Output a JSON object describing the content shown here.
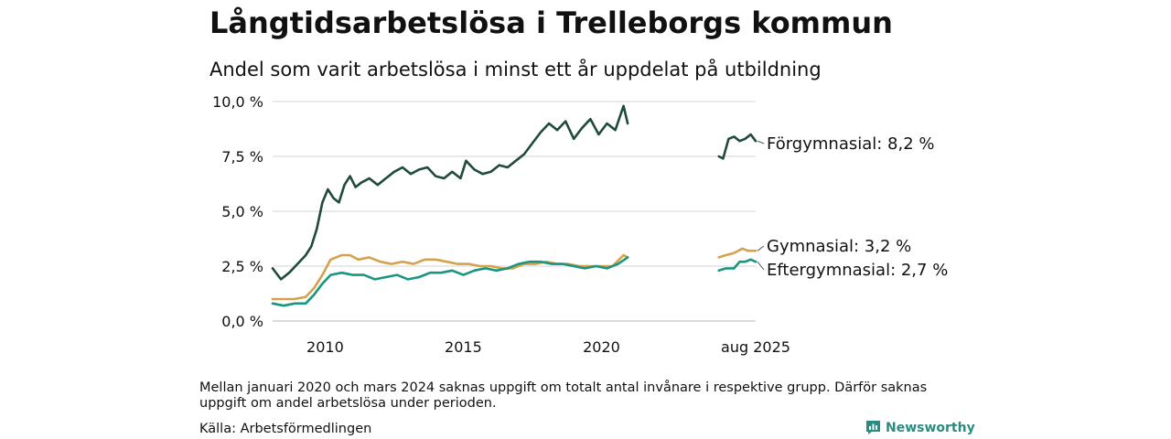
{
  "title": "Långtidsarbetslösa i Trelleborgs kommun",
  "subtitle": "Andel som varit arbetslösa i minst ett år uppdelat på utbildning",
  "note": "Mellan januari 2020 och mars 2024 saknas uppgift om totalt antal invånare i respektive grupp. Därför saknas uppgift om andel arbetslösa under perioden.",
  "source": "Källa: Arbetsförmedlingen",
  "brand": "Newsworthy",
  "chart_data": {
    "type": "line",
    "title": "Långtidsarbetslösa i Trelleborgs kommun",
    "subtitle": "Andel som varit arbetslösa i minst ett år uppdelat på utbildning",
    "ylim": [
      0,
      10
    ],
    "y_ticks": [
      0,
      2.5,
      5,
      7.5,
      10
    ],
    "y_tick_labels": [
      "0,0 %",
      "2,5 %",
      "5,0 %",
      "7,5 %",
      "10,0 %"
    ],
    "x_ticks": [
      2010,
      2015,
      2020,
      "aug 2025"
    ],
    "grid": "horizontal",
    "colors": {
      "Förgymnasial": "#1f4a3c",
      "Gymnasial": "#d4a24c",
      "Eftergymnasial": "#1a9680"
    },
    "series": [
      {
        "name": "Förgymnasial",
        "end_label": "Förgymnasial: 8,2 %",
        "segments": [
          {
            "x": [
              2008.1,
              2008.4,
              2008.7,
              2009.0,
              2009.3,
              2009.5,
              2009.7,
              2009.9,
              2010.1,
              2010.3,
              2010.5,
              2010.7,
              2010.9,
              2011.1,
              2011.3,
              2011.6,
              2011.9,
              2012.2,
              2012.5,
              2012.8,
              2013.1,
              2013.4,
              2013.7,
              2014.0,
              2014.3,
              2014.6,
              2014.9,
              2015.1,
              2015.4,
              2015.7,
              2016.0,
              2016.3,
              2016.6,
              2016.9,
              2017.2,
              2017.5,
              2017.8,
              2018.1,
              2018.4,
              2018.7,
              2019.0,
              2019.3,
              2019.6,
              2019.9,
              2020.2,
              2020.5,
              2020.8,
              2020.95
            ],
            "y": [
              2.4,
              1.9,
              2.2,
              2.6,
              3.0,
              3.4,
              4.2,
              5.4,
              6.0,
              5.6,
              5.4,
              6.2,
              6.6,
              6.1,
              6.3,
              6.5,
              6.2,
              6.5,
              6.8,
              7.0,
              6.7,
              6.9,
              7.0,
              6.6,
              6.5,
              6.8,
              6.5,
              7.3,
              6.9,
              6.7,
              6.8,
              7.1,
              7.0,
              7.3,
              7.6,
              8.1,
              8.6,
              9.0,
              8.7,
              9.1,
              8.3,
              8.8,
              9.2,
              8.5,
              9.0,
              8.7,
              9.8,
              9.0
            ]
          },
          {
            "x": [
              2024.25,
              2024.4,
              2024.6,
              2024.8,
              2025.0,
              2025.2,
              2025.4,
              2025.58
            ],
            "y": [
              7.5,
              7.4,
              8.3,
              8.4,
              8.2,
              8.3,
              8.5,
              8.2
            ]
          }
        ]
      },
      {
        "name": "Gymnasial",
        "end_label": "Gymnasial: 3,2 %",
        "segments": [
          {
            "x": [
              2008.1,
              2008.5,
              2008.9,
              2009.3,
              2009.6,
              2009.9,
              2010.2,
              2010.6,
              2010.9,
              2011.2,
              2011.6,
              2012.0,
              2012.4,
              2012.8,
              2013.2,
              2013.6,
              2014.0,
              2014.4,
              2014.8,
              2015.2,
              2015.6,
              2016.0,
              2016.4,
              2016.8,
              2017.2,
              2017.6,
              2018.0,
              2018.4,
              2018.8,
              2019.2,
              2019.6,
              2020.0,
              2020.4,
              2020.8,
              2020.95
            ],
            "y": [
              1.0,
              1.0,
              1.0,
              1.1,
              1.5,
              2.1,
              2.8,
              3.0,
              3.0,
              2.8,
              2.9,
              2.7,
              2.6,
              2.7,
              2.6,
              2.8,
              2.8,
              2.7,
              2.6,
              2.6,
              2.5,
              2.5,
              2.4,
              2.4,
              2.6,
              2.6,
              2.7,
              2.6,
              2.6,
              2.5,
              2.5,
              2.5,
              2.5,
              3.0,
              2.9
            ]
          },
          {
            "x": [
              2024.25,
              2024.5,
              2024.8,
              2025.1,
              2025.3,
              2025.58
            ],
            "y": [
              2.9,
              3.0,
              3.1,
              3.3,
              3.2,
              3.2
            ]
          }
        ]
      },
      {
        "name": "Eftergymnasial",
        "end_label": "Eftergymnasial: 2,7 %",
        "segments": [
          {
            "x": [
              2008.1,
              2008.5,
              2008.9,
              2009.3,
              2009.6,
              2009.9,
              2010.2,
              2010.6,
              2011.0,
              2011.4,
              2011.8,
              2012.2,
              2012.6,
              2013.0,
              2013.4,
              2013.8,
              2014.2,
              2014.6,
              2015.0,
              2015.4,
              2015.8,
              2016.2,
              2016.6,
              2017.0,
              2017.4,
              2017.8,
              2018.2,
              2018.6,
              2019.0,
              2019.4,
              2019.8,
              2020.2,
              2020.6,
              2020.95
            ],
            "y": [
              0.8,
              0.7,
              0.8,
              0.8,
              1.2,
              1.7,
              2.1,
              2.2,
              2.1,
              2.1,
              1.9,
              2.0,
              2.1,
              1.9,
              2.0,
              2.2,
              2.2,
              2.3,
              2.1,
              2.3,
              2.4,
              2.3,
              2.4,
              2.6,
              2.7,
              2.7,
              2.6,
              2.6,
              2.5,
              2.4,
              2.5,
              2.4,
              2.6,
              2.9
            ]
          },
          {
            "x": [
              2024.25,
              2024.5,
              2024.8,
              2025.0,
              2025.2,
              2025.4,
              2025.58
            ],
            "y": [
              2.3,
              2.4,
              2.4,
              2.7,
              2.7,
              2.8,
              2.7
            ]
          }
        ]
      }
    ]
  }
}
